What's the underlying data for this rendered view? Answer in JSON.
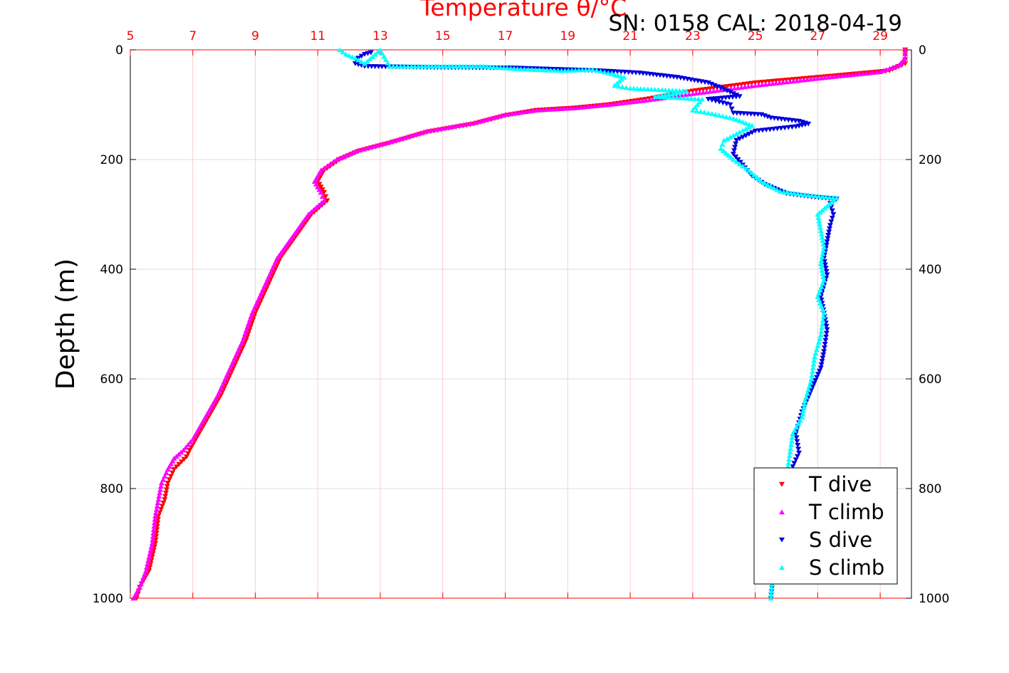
{
  "header": {
    "title": "Temperature θ/°C",
    "subtitle": "SN: 0158  CAL: 2018-04-19"
  },
  "colors": {
    "t_axis": "#ff0000",
    "t_dive": "#ff0000",
    "t_climb": "#ff00ff",
    "s_dive": "#0000dd",
    "s_climb": "#00ffff",
    "grid": "#dddddd",
    "t_grid": "#ffcccc"
  },
  "chart_data": {
    "type": "scatter",
    "title": "Temperature θ/°C",
    "subtitle": "SN: 0158  CAL: 2018-04-19",
    "ylabel": "Depth (m)",
    "y_axis": {
      "range": [
        0,
        1000
      ],
      "reversed": true,
      "ticks": [
        0,
        200,
        400,
        600,
        800,
        1000
      ]
    },
    "x_axis_top": {
      "range": [
        5,
        30
      ],
      "ticks": [
        5,
        7,
        9,
        11,
        13,
        15,
        17,
        19,
        21,
        23,
        25,
        27,
        29
      ],
      "color": "red"
    },
    "grid": true,
    "legend": {
      "placement": "bottom-right",
      "entries": [
        "T dive",
        "T climb",
        "S dive",
        "S climb"
      ]
    },
    "series": [
      {
        "name": "T dive",
        "marker": "triangle-down",
        "color": "#ff0000",
        "points": [
          [
            29.8,
            0
          ],
          [
            29.8,
            10
          ],
          [
            29.8,
            25
          ],
          [
            29.3,
            38
          ],
          [
            27,
            50
          ],
          [
            25,
            60
          ],
          [
            23,
            75
          ],
          [
            21.5,
            90
          ],
          [
            20.3,
            100
          ],
          [
            19.2,
            106
          ],
          [
            18,
            110
          ],
          [
            17,
            120
          ],
          [
            16,
            135
          ],
          [
            14.5,
            150
          ],
          [
            13.3,
            170
          ],
          [
            12.3,
            185
          ],
          [
            11.7,
            200
          ],
          [
            11.2,
            220
          ],
          [
            11,
            240
          ],
          [
            11.2,
            260
          ],
          [
            11.3,
            275
          ],
          [
            10.8,
            300
          ],
          [
            10.3,
            340
          ],
          [
            9.8,
            380
          ],
          [
            9.4,
            430
          ],
          [
            9,
            480
          ],
          [
            8.7,
            530
          ],
          [
            8.3,
            580
          ],
          [
            7.9,
            630
          ],
          [
            7.4,
            680
          ],
          [
            7.1,
            710
          ],
          [
            6.9,
            730
          ],
          [
            6.8,
            742
          ],
          [
            6.4,
            765
          ],
          [
            6.2,
            790
          ],
          [
            6.1,
            820
          ],
          [
            5.9,
            850
          ],
          [
            5.8,
            900
          ],
          [
            5.6,
            950
          ],
          [
            5.3,
            980
          ],
          [
            5.2,
            1000
          ]
        ]
      },
      {
        "name": "T climb",
        "marker": "triangle-up",
        "color": "#ff00ff",
        "points": [
          [
            29.8,
            0
          ],
          [
            29.8,
            15
          ],
          [
            29.6,
            28
          ],
          [
            29,
            40
          ],
          [
            27,
            52
          ],
          [
            25,
            65
          ],
          [
            23,
            80
          ],
          [
            21.5,
            92
          ],
          [
            20.3,
            100
          ],
          [
            19.2,
            106
          ],
          [
            18,
            110
          ],
          [
            17,
            118
          ],
          [
            16,
            133
          ],
          [
            14.5,
            148
          ],
          [
            13.3,
            168
          ],
          [
            12.3,
            183
          ],
          [
            11.6,
            200
          ],
          [
            11.1,
            220
          ],
          [
            10.9,
            240
          ],
          [
            11.1,
            260
          ],
          [
            11.2,
            275
          ],
          [
            10.7,
            300
          ],
          [
            10.2,
            340
          ],
          [
            9.7,
            380
          ],
          [
            9.3,
            430
          ],
          [
            8.9,
            480
          ],
          [
            8.6,
            530
          ],
          [
            8.2,
            580
          ],
          [
            7.8,
            630
          ],
          [
            7.3,
            680
          ],
          [
            7,
            710
          ],
          [
            6.7,
            730
          ],
          [
            6.4,
            745
          ],
          [
            6.2,
            765
          ],
          [
            6,
            790
          ],
          [
            5.9,
            820
          ],
          [
            5.8,
            850
          ],
          [
            5.7,
            900
          ],
          [
            5.5,
            950
          ],
          [
            5.3,
            980
          ],
          [
            5.1,
            1000
          ]
        ]
      },
      {
        "name": "S dive",
        "marker": "triangle-down",
        "color": "#0000dd",
        "points": [
          [
            12.7,
            5
          ],
          [
            12.5,
            8
          ],
          [
            12.3,
            15
          ],
          [
            12.2,
            25
          ],
          [
            12.5,
            30
          ],
          [
            14.5,
            32
          ],
          [
            17.3,
            33
          ],
          [
            20,
            38
          ],
          [
            21.3,
            42
          ],
          [
            22.5,
            50
          ],
          [
            23.5,
            60
          ],
          [
            24,
            72
          ],
          [
            24.5,
            85
          ],
          [
            23.5,
            90
          ],
          [
            24.2,
            100
          ],
          [
            24.3,
            115
          ],
          [
            25.2,
            118
          ],
          [
            25.5,
            124
          ],
          [
            26.4,
            130
          ],
          [
            26.7,
            135
          ],
          [
            26.3,
            140
          ],
          [
            25,
            148
          ],
          [
            24.4,
            165
          ],
          [
            24.3,
            190
          ],
          [
            24.6,
            210
          ],
          [
            24.9,
            230
          ],
          [
            25.3,
            245
          ],
          [
            26,
            262
          ],
          [
            26.8,
            268
          ],
          [
            27.6,
            272
          ],
          [
            27.4,
            280
          ],
          [
            27.5,
            300
          ],
          [
            27.4,
            320
          ],
          [
            27.3,
            350
          ],
          [
            27.2,
            380
          ],
          [
            27.3,
            410
          ],
          [
            27.1,
            450
          ],
          [
            27.2,
            480
          ],
          [
            27.3,
            510
          ],
          [
            27.2,
            550
          ],
          [
            27.1,
            580
          ],
          [
            26.8,
            620
          ],
          [
            26.5,
            660
          ],
          [
            26.3,
            700
          ],
          [
            26.4,
            735
          ],
          [
            26.2,
            760
          ],
          [
            26.1,
            800
          ],
          [
            25.9,
            850
          ],
          [
            25.8,
            900
          ],
          [
            25.6,
            950
          ],
          [
            25.5,
            1000
          ]
        ]
      },
      {
        "name": "S climb",
        "marker": "triangle-up",
        "color": "#00ffff",
        "points": [
          [
            11.7,
            0
          ],
          [
            11.9,
            8
          ],
          [
            12.2,
            15
          ],
          [
            12.5,
            25
          ],
          [
            13,
            0
          ],
          [
            13.3,
            30
          ],
          [
            14,
            30
          ],
          [
            15.2,
            30
          ],
          [
            16.3,
            30
          ],
          [
            17.5,
            35
          ],
          [
            18.8,
            38
          ],
          [
            19.8,
            36
          ],
          [
            20.3,
            42
          ],
          [
            20.8,
            50
          ],
          [
            20.5,
            65
          ],
          [
            21,
            70
          ],
          [
            22.8,
            75
          ],
          [
            21.8,
            85
          ],
          [
            23.3,
            90
          ],
          [
            23,
            110
          ],
          [
            23.5,
            115
          ],
          [
            24.3,
            125
          ],
          [
            24.9,
            138
          ],
          [
            24.5,
            150
          ],
          [
            24,
            165
          ],
          [
            23.9,
            180
          ],
          [
            24.3,
            200
          ],
          [
            24.8,
            220
          ],
          [
            25.2,
            240
          ],
          [
            25.8,
            258
          ],
          [
            26.7,
            265
          ],
          [
            27.6,
            270
          ],
          [
            27.3,
            285
          ],
          [
            27,
            300
          ],
          [
            27.1,
            330
          ],
          [
            27.2,
            360
          ],
          [
            27.1,
            390
          ],
          [
            27.2,
            420
          ],
          [
            27,
            450
          ],
          [
            27.2,
            480
          ],
          [
            27.1,
            520
          ],
          [
            26.9,
            560
          ],
          [
            26.8,
            600
          ],
          [
            26.6,
            640
          ],
          [
            26.5,
            670
          ],
          [
            26.2,
            700
          ],
          [
            26.1,
            740
          ],
          [
            26,
            780
          ],
          [
            25.9,
            830
          ],
          [
            25.7,
            880
          ],
          [
            25.6,
            930
          ],
          [
            25.5,
            1000
          ]
        ]
      }
    ]
  }
}
